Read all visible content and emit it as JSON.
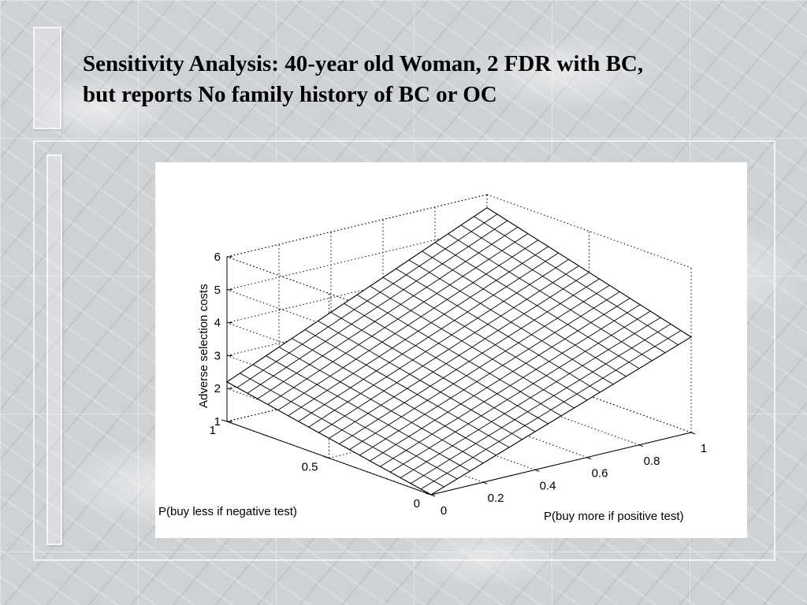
{
  "slide": {
    "title_line1": "Sensitivity Analysis: 40-year old Woman, 2 FDR with BC,",
    "title_line2": "but reports No family history of BC or OC"
  },
  "chart_data": {
    "type": "surface",
    "title": "",
    "xlabel": "P(buy more if positive test)",
    "ylabel": "P(buy less if negative test)",
    "zlabel": "Adverse selection costs",
    "xlim": [
      0,
      1
    ],
    "ylim": [
      0,
      1
    ],
    "zlim": [
      1,
      6
    ],
    "x_ticks": [
      "0",
      "0.2",
      "0.4",
      "0.6",
      "0.8",
      "1"
    ],
    "y_ticks": [
      "0",
      "0.5",
      "1"
    ],
    "z_ticks": [
      "1",
      "2",
      "3",
      "4",
      "5",
      "6"
    ],
    "grid": true,
    "mesh_divisions": 20,
    "corner_values": [
      {
        "x": 0,
        "y": 0,
        "z": 1.0
      },
      {
        "x": 1,
        "y": 0,
        "z": 3.9
      },
      {
        "x": 0,
        "y": 1,
        "z": 2.2
      },
      {
        "x": 1,
        "y": 1,
        "z": 5.6
      }
    ]
  }
}
